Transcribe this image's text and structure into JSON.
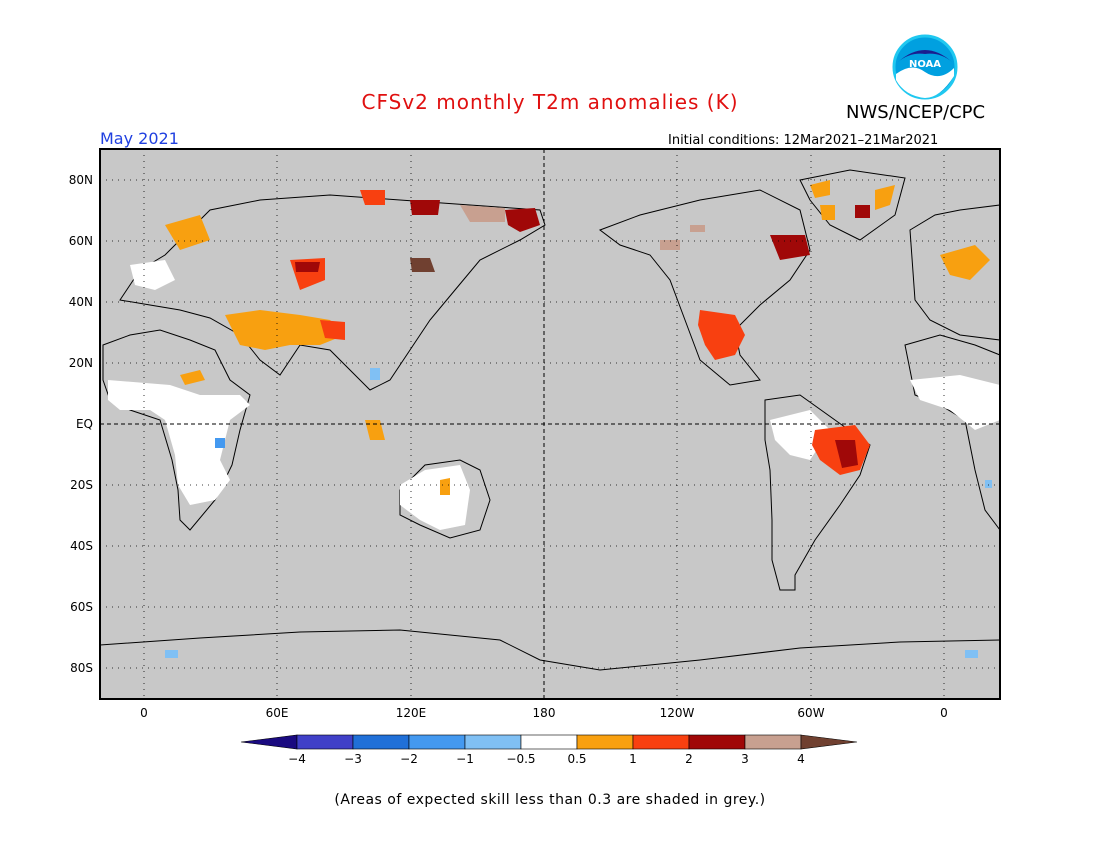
{
  "header": {
    "title": "CFSv2 monthly T2m anomalies (K)",
    "agency": "NWS/NCEP/CPC",
    "logo_text": "NOAA",
    "month": "May 2021",
    "initial_conditions": "Initial conditions: 12Mar2021–21Mar2021"
  },
  "map": {
    "background_color": "#c8c8c8",
    "lat_labels": [
      "80N",
      "60N",
      "40N",
      "20N",
      "EQ",
      "20S",
      "40S",
      "60S",
      "80S"
    ],
    "lon_labels": [
      "0",
      "60E",
      "120E",
      "180",
      "120W",
      "60W",
      "0"
    ]
  },
  "colorbar": {
    "colors": [
      "#1a0a80",
      "#4040c8",
      "#2070d8",
      "#4499f0",
      "#80c0f4",
      "#ffffff",
      "#f8a010",
      "#f84010",
      "#a00808",
      "#c8a090",
      "#704030"
    ],
    "tick_labels": [
      "−4",
      "−3",
      "−2",
      "−1",
      "−0.5",
      "0.5",
      "1",
      "2",
      "3",
      "4"
    ]
  },
  "footer": {
    "skill_note": "(Areas of expected skill less than 0.3 are shaded in grey.)"
  }
}
